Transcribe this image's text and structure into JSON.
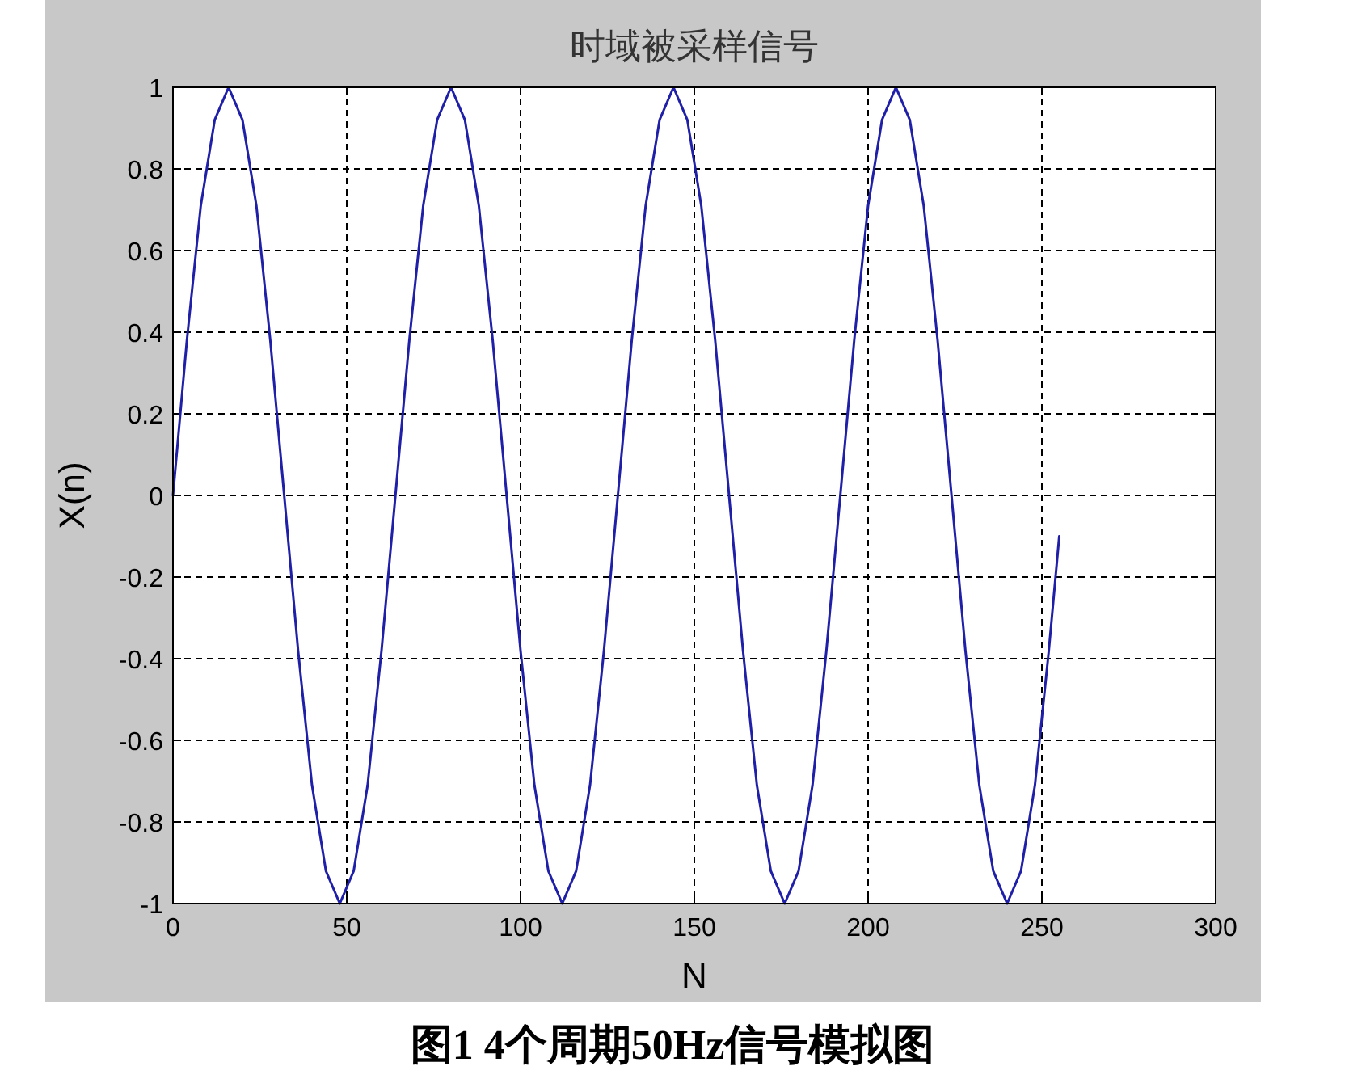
{
  "chart_data": {
    "type": "line",
    "title": "时域被采样信号",
    "xlabel": "N",
    "ylabel": "X(n)",
    "x": [
      0,
      4,
      8,
      12,
      16,
      20,
      24,
      28,
      32,
      36,
      40,
      44,
      48,
      52,
      56,
      60,
      64,
      68,
      72,
      76,
      80,
      84,
      88,
      92,
      96,
      100,
      104,
      108,
      112,
      116,
      120,
      124,
      128,
      132,
      136,
      140,
      144,
      148,
      152,
      156,
      160,
      164,
      168,
      172,
      176,
      180,
      184,
      188,
      192,
      196,
      200,
      204,
      208,
      212,
      216,
      220,
      224,
      228,
      232,
      236,
      240,
      244,
      248,
      252,
      255
    ],
    "series": [
      {
        "color": "#1f1fa8",
        "values": [
          0,
          0.38,
          0.71,
          0.92,
          1,
          0.92,
          0.71,
          0.38,
          0,
          -0.38,
          -0.71,
          -0.92,
          -1,
          -0.92,
          -0.71,
          -0.38,
          0,
          0.38,
          0.71,
          0.92,
          1,
          0.92,
          0.71,
          0.38,
          0,
          -0.38,
          -0.71,
          -0.92,
          -1,
          -0.92,
          -0.71,
          -0.38,
          0,
          0.38,
          0.71,
          0.92,
          1,
          0.92,
          0.71,
          0.38,
          0,
          -0.38,
          -0.71,
          -0.92,
          -1,
          -0.92,
          -0.71,
          -0.38,
          0,
          0.38,
          0.71,
          0.92,
          1,
          0.92,
          0.71,
          0.38,
          0,
          -0.38,
          -0.71,
          -0.92,
          -1,
          -0.92,
          -0.71,
          -0.38,
          -0.1
        ]
      }
    ],
    "xlim": [
      0,
      300
    ],
    "xticks": [
      0,
      50,
      100,
      150,
      200,
      250,
      300
    ],
    "ylim": [
      -1,
      1
    ],
    "yticks": [
      -1,
      -0.8,
      -0.6,
      -0.4,
      -0.2,
      0,
      0.2,
      0.4,
      0.6,
      0.8,
      1
    ],
    "grid": true,
    "line_style": "solid",
    "marker": "none",
    "annotations": [
      "图1   4个周期50Hz信号模拟图"
    ]
  }
}
